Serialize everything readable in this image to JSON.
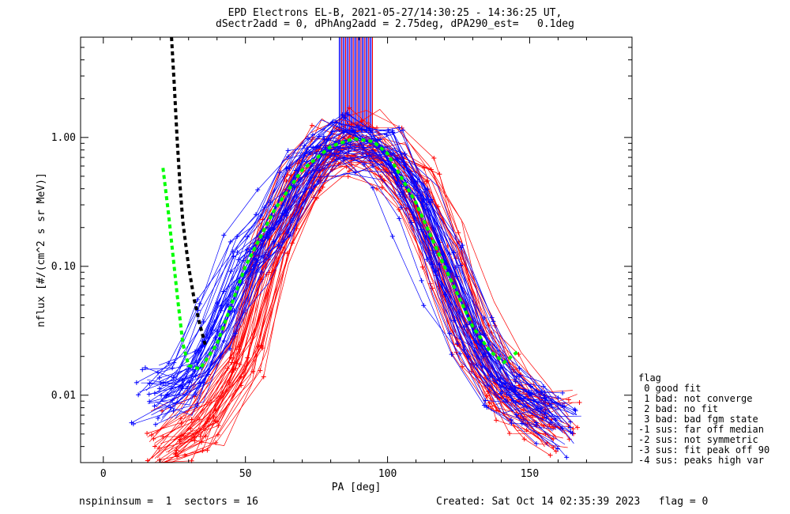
{
  "header": {
    "title_line1": "EPD Electrons EL-B, 2021-05-27/14:30:25 - 14:36:25 UT,",
    "title_line2": "dSectr2add = 0, dPhAng2add = 2.75deg, dPA290_est=   0.1deg"
  },
  "footer": {
    "left": "nspininsum =  1  sectors = 16",
    "right": "Created: Sat Oct 14 02:35:39 2023   flag = 0"
  },
  "legend": {
    "title": "flag",
    "items": [
      " 0 good fit",
      " 1 bad: not converge",
      " 2 bad: no fit",
      " 3 bad: bad fgm state",
      "-1 sus: far off median",
      "-2 sus: not symmetric",
      "-3 sus: fit peak off 90",
      "-4 sus: peaks high var"
    ]
  },
  "colors": {
    "series_a": "#ff0000",
    "series_b": "#0000ff",
    "fit_green": "#00ff00",
    "fit_black": "#000000"
  },
  "chart_data": {
    "type": "line",
    "xlabel": "PA [deg]",
    "ylabel": "nflux [#/(cm^2 s sr MeV)]",
    "xlim": [
      -8,
      186
    ],
    "ylim": [
      0.003,
      6.0
    ],
    "yscale": "log",
    "x_ticks": [
      0,
      50,
      100,
      150
    ],
    "x_tick_labels": [
      "0",
      "50",
      "100",
      "150"
    ],
    "y_ticks": [
      0.01,
      0.1,
      1.0
    ],
    "y_tick_labels": [
      "0.01",
      "0.10",
      "1.00"
    ],
    "spike": {
      "x_min": 83,
      "x_max": 95,
      "y_top": 6.0,
      "y_bottom": 1.1
    },
    "series": [
      {
        "color": "red",
        "x": [
          22,
          35,
          50,
          60,
          70,
          80,
          90,
          100,
          110,
          120,
          130,
          140,
          150,
          160
        ],
        "y": [
          0.004,
          0.006,
          0.02,
          0.15,
          0.45,
          0.8,
          0.9,
          0.75,
          0.4,
          0.12,
          0.03,
          0.012,
          0.008,
          0.006
        ]
      },
      {
        "color": "blue",
        "x": [
          18,
          30,
          40,
          50,
          60,
          70,
          80,
          90,
          100,
          110,
          120,
          130,
          140,
          150,
          160
        ],
        "y": [
          0.009,
          0.012,
          0.03,
          0.1,
          0.2,
          0.5,
          0.8,
          0.85,
          0.7,
          0.3,
          0.09,
          0.025,
          0.011,
          0.008,
          0.006
        ]
      }
    ],
    "fits": [
      {
        "color": "green",
        "x": [
          21,
          23,
          26,
          28,
          30,
          34,
          40,
          50,
          60,
          70,
          80,
          88,
          95,
          100,
          110,
          120,
          130,
          136,
          141,
          146
        ],
        "y": [
          0.58,
          0.25,
          0.06,
          0.025,
          0.017,
          0.016,
          0.025,
          0.1,
          0.27,
          0.56,
          0.85,
          0.98,
          0.93,
          0.75,
          0.31,
          0.1,
          0.034,
          0.022,
          0.018,
          0.022
        ]
      },
      {
        "color": "black",
        "x": [
          24,
          25,
          26,
          27,
          28,
          30,
          32,
          34,
          36
        ],
        "y": [
          6.0,
          2.5,
          0.95,
          0.42,
          0.22,
          0.1,
          0.055,
          0.035,
          0.024
        ]
      }
    ]
  }
}
